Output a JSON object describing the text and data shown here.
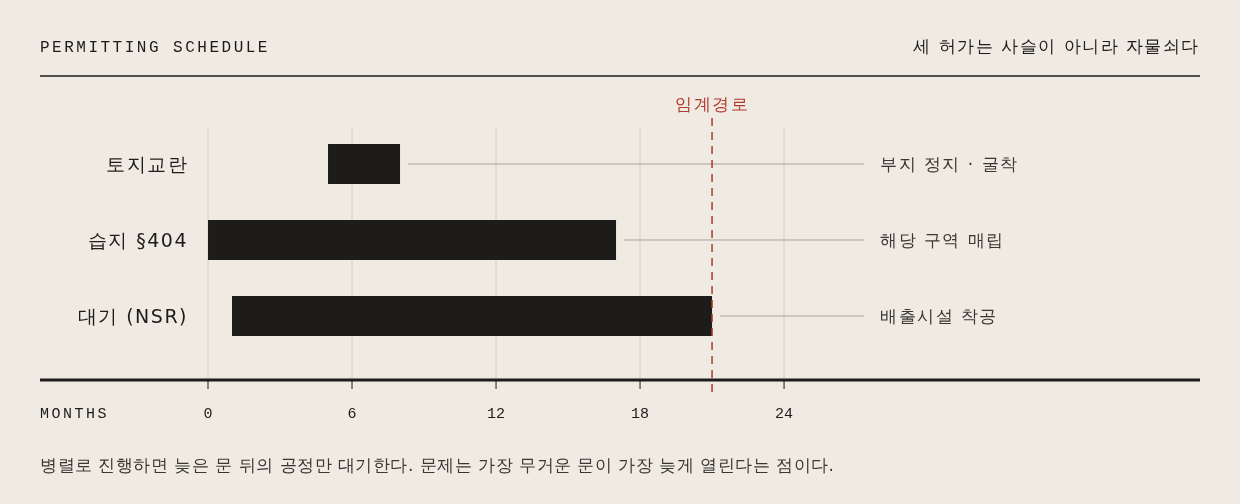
{
  "chart_data": {
    "type": "bar",
    "orientation": "horizontal",
    "title": "PERMITTING SCHEDULE",
    "subtitle": "세 허가는 사슬이 아니라 자물쇠다",
    "xlabel": "MONTHS",
    "categories": [
      "토지교란",
      "습지 §404",
      "대기 (NSR)"
    ],
    "values": [
      3,
      17,
      20
    ],
    "base": [
      5,
      0,
      1
    ],
    "color": "#1e1c1a",
    "xlim": [
      -7,
      41.33
    ],
    "xticks": [
      0,
      6,
      12,
      18,
      24
    ],
    "grid": "x",
    "ref_lines": [
      {
        "axis": "x",
        "value": 21,
        "label": "임계경로",
        "color": "#b03a2e",
        "line_style": "dashed"
      }
    ],
    "annotations": [
      "부지 정지 · 굴착",
      "해당 구역 매립",
      "배출시설 착공",
      "병렬로 진행하면 늦은 문 뒤의 공정만 대기한다. 문제는 가장 무거운 문이 가장 늦게 열린다는 점이다."
    ]
  }
}
